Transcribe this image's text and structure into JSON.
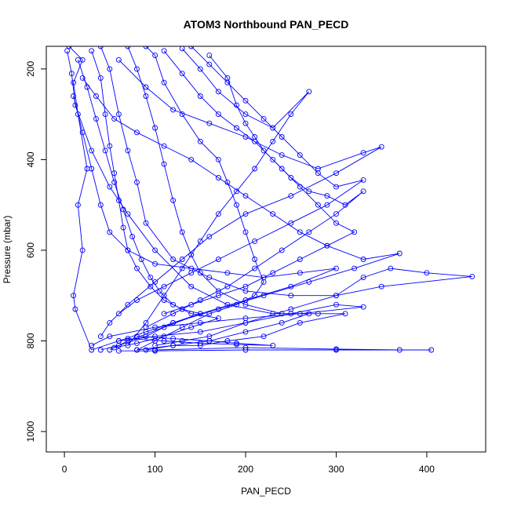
{
  "chart_data": {
    "type": "scatter",
    "title": "ATOM3 Northbound PAN_PECD",
    "xlabel": "PAN_PECD",
    "ylabel": "Pressure (mbar)",
    "xlim": [
      -20,
      465
    ],
    "ylim": [
      1045,
      150
    ],
    "y_reversed": true,
    "xticks": [
      0,
      100,
      200,
      300,
      400
    ],
    "yticks": [
      200,
      400,
      600,
      800,
      1000
    ],
    "connected": true,
    "color": "#0000ff",
    "marker": "open-circle",
    "series": [
      {
        "points": [
          [
            5,
            150
          ],
          [
            20,
            180
          ],
          [
            10,
            230
          ],
          [
            15,
            300
          ],
          [
            25,
            420
          ],
          [
            15,
            500
          ],
          [
            20,
            600
          ],
          [
            10,
            700
          ],
          [
            12,
            730
          ],
          [
            30,
            820
          ],
          [
            60,
            800
          ],
          [
            100,
            790
          ],
          [
            150,
            780
          ],
          [
            200,
            760
          ],
          [
            250,
            740
          ],
          [
            300,
            720
          ],
          [
            330,
            725
          ],
          [
            260,
            740
          ],
          [
            200,
            750
          ],
          [
            150,
            760
          ],
          [
            100,
            770
          ],
          [
            50,
            790
          ],
          [
            30,
            810
          ]
        ]
      },
      {
        "points": [
          [
            3,
            160
          ],
          [
            8,
            210
          ],
          [
            12,
            280
          ],
          [
            30,
            380
          ],
          [
            50,
            460
          ],
          [
            70,
            520
          ],
          [
            100,
            600
          ],
          [
            140,
            680
          ],
          [
            180,
            720
          ],
          [
            230,
            740
          ],
          [
            280,
            740
          ],
          [
            310,
            740
          ],
          [
            260,
            760
          ],
          [
            220,
            790
          ],
          [
            180,
            800
          ],
          [
            150,
            810
          ],
          [
            120,
            810
          ],
          [
            80,
            820
          ]
        ]
      },
      {
        "points": [
          [
            40,
            150
          ],
          [
            50,
            200
          ],
          [
            60,
            300
          ],
          [
            70,
            380
          ],
          [
            80,
            450
          ],
          [
            90,
            540
          ],
          [
            120,
            620
          ],
          [
            160,
            660
          ],
          [
            200,
            690
          ],
          [
            250,
            700
          ],
          [
            300,
            700
          ],
          [
            330,
            660
          ],
          [
            360,
            640
          ],
          [
            400,
            650
          ],
          [
            450,
            658
          ],
          [
            350,
            680
          ],
          [
            300,
            700
          ],
          [
            250,
            730
          ],
          [
            200,
            760
          ],
          [
            160,
            790
          ],
          [
            130,
            800
          ],
          [
            100,
            810
          ]
        ]
      },
      {
        "points": [
          [
            90,
            150
          ],
          [
            100,
            170
          ],
          [
            110,
            230
          ],
          [
            130,
            300
          ],
          [
            150,
            360
          ],
          [
            170,
            400
          ],
          [
            180,
            450
          ],
          [
            190,
            500
          ],
          [
            200,
            560
          ],
          [
            210,
            620
          ],
          [
            220,
            670
          ],
          [
            210,
            700
          ],
          [
            190,
            720
          ],
          [
            160,
            740
          ],
          [
            130,
            770
          ],
          [
            100,
            800
          ],
          [
            80,
            820
          ]
        ]
      },
      {
        "points": [
          [
            130,
            155
          ],
          [
            150,
            200
          ],
          [
            170,
            250
          ],
          [
            200,
            300
          ],
          [
            230,
            330
          ],
          [
            270,
            250
          ],
          [
            250,
            300
          ],
          [
            230,
            360
          ],
          [
            210,
            420
          ],
          [
            190,
            470
          ],
          [
            170,
            520
          ],
          [
            150,
            580
          ],
          [
            130,
            640
          ],
          [
            110,
            700
          ],
          [
            90,
            760
          ],
          [
            70,
            810
          ]
        ]
      },
      {
        "points": [
          [
            60,
            180
          ],
          [
            90,
            240
          ],
          [
            120,
            290
          ],
          [
            160,
            320
          ],
          [
            200,
            350
          ],
          [
            240,
            390
          ],
          [
            280,
            420
          ],
          [
            330,
            385
          ],
          [
            350,
            372
          ],
          [
            300,
            430
          ],
          [
            250,
            480
          ],
          [
            200,
            520
          ],
          [
            160,
            570
          ],
          [
            130,
            620
          ],
          [
            100,
            670
          ],
          [
            70,
            720
          ],
          [
            50,
            760
          ],
          [
            40,
            790
          ]
        ]
      },
      {
        "points": [
          [
            20,
            220
          ],
          [
            35,
            260
          ],
          [
            55,
            310
          ],
          [
            80,
            340
          ],
          [
            110,
            370
          ],
          [
            140,
            400
          ],
          [
            170,
            440
          ],
          [
            200,
            480
          ],
          [
            230,
            520
          ],
          [
            260,
            560
          ],
          [
            290,
            590
          ],
          [
            330,
            620
          ],
          [
            370,
            607
          ],
          [
            320,
            640
          ],
          [
            270,
            670
          ],
          [
            220,
            700
          ],
          [
            170,
            730
          ],
          [
            120,
            760
          ],
          [
            90,
            780
          ],
          [
            60,
            800
          ]
        ]
      },
      {
        "points": [
          [
            10,
            260
          ],
          [
            20,
            340
          ],
          [
            30,
            420
          ],
          [
            40,
            500
          ],
          [
            50,
            560
          ],
          [
            70,
            600
          ],
          [
            100,
            630
          ],
          [
            140,
            640
          ],
          [
            180,
            650
          ],
          [
            220,
            660
          ],
          [
            260,
            650
          ],
          [
            300,
            640
          ],
          [
            250,
            680
          ],
          [
            200,
            710
          ],
          [
            150,
            740
          ],
          [
            110,
            770
          ],
          [
            70,
            800
          ],
          [
            50,
            820
          ]
        ]
      },
      {
        "points": [
          [
            110,
            160
          ],
          [
            130,
            210
          ],
          [
            150,
            260
          ],
          [
            170,
            300
          ],
          [
            190,
            330
          ],
          [
            210,
            360
          ],
          [
            230,
            400
          ],
          [
            250,
            440
          ],
          [
            270,
            470
          ],
          [
            290,
            480
          ],
          [
            310,
            500
          ],
          [
            330,
            470
          ],
          [
            300,
            520
          ],
          [
            270,
            560
          ],
          [
            240,
            600
          ],
          [
            210,
            640
          ],
          [
            180,
            680
          ],
          [
            150,
            710
          ],
          [
            120,
            740
          ],
          [
            90,
            770
          ]
        ]
      },
      {
        "points": [
          [
            140,
            150
          ],
          [
            160,
            190
          ],
          [
            180,
            230
          ],
          [
            200,
            270
          ],
          [
            220,
            310
          ],
          [
            240,
            350
          ],
          [
            260,
            390
          ],
          [
            280,
            430
          ],
          [
            300,
            460
          ],
          [
            330,
            445
          ],
          [
            290,
            500
          ],
          [
            250,
            540
          ],
          [
            210,
            580
          ],
          [
            170,
            620
          ],
          [
            140,
            650
          ],
          [
            110,
            680
          ],
          [
            80,
            710
          ],
          [
            60,
            740
          ]
        ]
      },
      {
        "points": [
          [
            70,
            150
          ],
          [
            80,
            200
          ],
          [
            90,
            260
          ],
          [
            100,
            330
          ],
          [
            110,
            410
          ],
          [
            120,
            490
          ],
          [
            130,
            560
          ],
          [
            140,
            610
          ],
          [
            150,
            650
          ],
          [
            170,
            690
          ],
          [
            200,
            720
          ],
          [
            240,
            740
          ],
          [
            270,
            740
          ],
          [
            240,
            760
          ],
          [
            200,
            780
          ],
          [
            160,
            800
          ],
          [
            120,
            810
          ],
          [
            90,
            820
          ]
        ]
      },
      {
        "points": [
          [
            30,
            160
          ],
          [
            40,
            220
          ],
          [
            45,
            300
          ],
          [
            50,
            370
          ],
          [
            55,
            430
          ],
          [
            60,
            490
          ],
          [
            65,
            550
          ],
          [
            70,
            600
          ],
          [
            80,
            640
          ],
          [
            95,
            680
          ],
          [
            110,
            710
          ],
          [
            130,
            730
          ],
          [
            150,
            740
          ],
          [
            120,
            760
          ],
          [
            90,
            790
          ],
          [
            60,
            810
          ],
          [
            40,
            820
          ]
        ]
      },
      {
        "points": [
          [
            160,
            170
          ],
          [
            180,
            220
          ],
          [
            190,
            280
          ],
          [
            200,
            320
          ],
          [
            210,
            350
          ],
          [
            220,
            380
          ],
          [
            240,
            420
          ],
          [
            260,
            460
          ],
          [
            280,
            500
          ],
          [
            300,
            540
          ],
          [
            320,
            560
          ],
          [
            290,
            590
          ],
          [
            260,
            620
          ],
          [
            230,
            650
          ],
          [
            200,
            680
          ],
          [
            170,
            700
          ],
          [
            140,
            720
          ],
          [
            110,
            740
          ]
        ]
      },
      {
        "points": [
          [
            15,
            180
          ],
          [
            25,
            240
          ],
          [
            35,
            310
          ],
          [
            45,
            380
          ],
          [
            55,
            450
          ],
          [
            65,
            510
          ],
          [
            75,
            570
          ],
          [
            85,
            620
          ],
          [
            95,
            660
          ],
          [
            105,
            690
          ],
          [
            120,
            720
          ],
          [
            140,
            740
          ],
          [
            170,
            750
          ],
          [
            140,
            770
          ],
          [
            110,
            790
          ],
          [
            80,
            805
          ],
          [
            55,
            815
          ]
        ]
      },
      {
        "points": [
          [
            100,
            820
          ],
          [
            200,
            815
          ],
          [
            300,
            818
          ],
          [
            370,
            820
          ],
          [
            405,
            820
          ],
          [
            300,
            820
          ],
          [
            200,
            820
          ],
          [
            100,
            822
          ],
          [
            60,
            822
          ]
        ]
      },
      {
        "points": [
          [
            80,
            790
          ],
          [
            120,
            795
          ],
          [
            160,
            800
          ],
          [
            190,
            805
          ],
          [
            230,
            810
          ],
          [
            190,
            808
          ],
          [
            150,
            805
          ],
          [
            110,
            800
          ],
          [
            70,
            795
          ]
        ]
      }
    ]
  }
}
